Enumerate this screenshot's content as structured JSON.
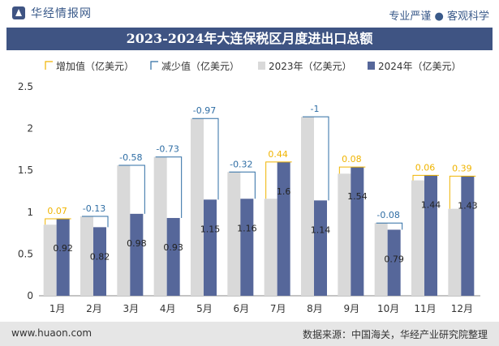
{
  "header": {
    "brand": "华经情报网",
    "slogan": "专业严谨 ● 客观科学"
  },
  "chart_data": {
    "type": "bar",
    "title": "2023-2024年大连保税区月度进出口总额",
    "categories": [
      "1月",
      "2月",
      "3月",
      "4月",
      "5月",
      "6月",
      "7月",
      "8月",
      "9月",
      "10月",
      "11月",
      "12月"
    ],
    "series": [
      {
        "name": "2023年（亿美元）",
        "color": "#d9d9d9",
        "values": [
          0.85,
          0.95,
          1.56,
          1.66,
          2.12,
          1.48,
          1.16,
          2.14,
          1.46,
          0.87,
          1.38,
          1.04
        ]
      },
      {
        "name": "2024年（亿美元）",
        "color": "#56679a",
        "values": [
          0.92,
          0.82,
          0.98,
          0.93,
          1.15,
          1.16,
          1.6,
          1.14,
          1.54,
          0.79,
          1.44,
          1.43
        ]
      }
    ],
    "diff_series": [
      {
        "name": "增加值（亿美元）",
        "color": "#f0b400"
      },
      {
        "name": "减少值（亿美元）",
        "color": "#2e6da4"
      }
    ],
    "diff_labels": [
      "0.07",
      "-0.13",
      "-0.58",
      "-0.73",
      "-0.97",
      "-0.32",
      "0.44",
      "-1",
      "0.08",
      "-0.08",
      "0.06",
      "0.39"
    ],
    "value_labels_2024": [
      "0.92",
      "0.82",
      "0.98",
      "0.93",
      "1.15",
      "1.16",
      "1.6",
      "1.14",
      "1.54",
      "0.79",
      "1.44",
      "1.43"
    ],
    "yticks": [
      "0",
      "0.5",
      "1",
      "1.5",
      "2",
      "2.5"
    ],
    "ylim": [
      0,
      2.5
    ],
    "legend_position": "top"
  },
  "footer": {
    "url": "www.huaon.com",
    "source": "数据来源：中国海关，华经产业研究院整理"
  }
}
